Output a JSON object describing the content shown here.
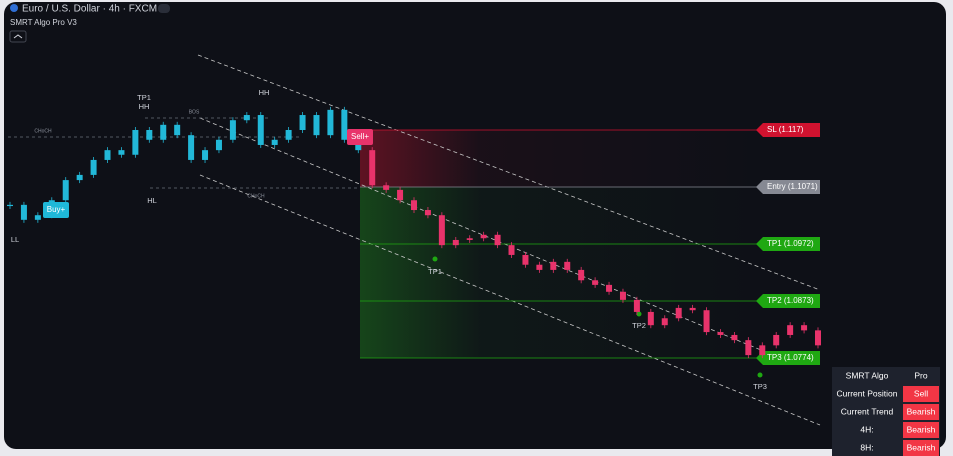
{
  "header": {
    "title": "Euro / U.S. Dollar · 4h · FXCM",
    "indicator": "SMRT Algo Pro V3"
  },
  "chart_data": {
    "type": "candlestick",
    "series": [
      {
        "color": "#22b8d8",
        "values": [
          1.104,
          1.1014,
          1.1022,
          1.1048,
          1.1083,
          1.1092,
          1.1118,
          1.1135,
          1.1127,
          1.117,
          1.1153,
          1.1179,
          1.1161,
          1.1118,
          1.1135,
          1.1153,
          1.1187,
          1.1196,
          1.1144,
          1.1153,
          1.117,
          1.1196,
          1.1161,
          1.1205,
          1.1153,
          1.1135
        ]
      },
      {
        "color": "#e8336b",
        "values": [
          1.1074,
          1.1066,
          1.1048,
          1.1031,
          1.1022,
          1.097,
          1.0979,
          1.0982,
          1.0988,
          1.097,
          1.0953,
          1.0936,
          1.0927,
          1.0941,
          1.0927,
          1.0909,
          1.0901,
          1.0889,
          1.0875,
          1.0854,
          1.0831,
          1.0843,
          1.0861,
          1.0857,
          1.0819,
          1.0814,
          1.0805,
          1.0779,
          1.0796,
          1.0814,
          1.0831,
          1.0822,
          1.0796
        ]
      }
    ],
    "levels": [
      {
        "label": "SL (1.117)",
        "value": 1.117,
        "color": "#d0122f"
      },
      {
        "label": "Entry (1.1071)",
        "value": 1.1071,
        "color": "#868993"
      },
      {
        "label": "TP1 (1.0972)",
        "value": 1.0972,
        "color": "#1fa812"
      },
      {
        "label": "TP2 (1.0873)",
        "value": 1.0873,
        "color": "#1fa812"
      },
      {
        "label": "TP3 (1.0774)",
        "value": 1.0774,
        "color": "#1fa812"
      }
    ],
    "annotations": [
      "TP1",
      "HH",
      "HH",
      "HL",
      "LL",
      "CHoCH",
      "BOS",
      "CHoCH",
      "TP1",
      "TP2",
      "TP3"
    ],
    "signals": [
      "Buy+",
      "Sell+"
    ]
  },
  "table": {
    "rows": [
      [
        "SMRT Algo",
        "Pro"
      ],
      [
        "Current Position",
        "Sell"
      ],
      [
        "Current Trend",
        "Bearish"
      ],
      [
        "4H:",
        "Bearish"
      ],
      [
        "8H:",
        "Bearish"
      ]
    ]
  }
}
